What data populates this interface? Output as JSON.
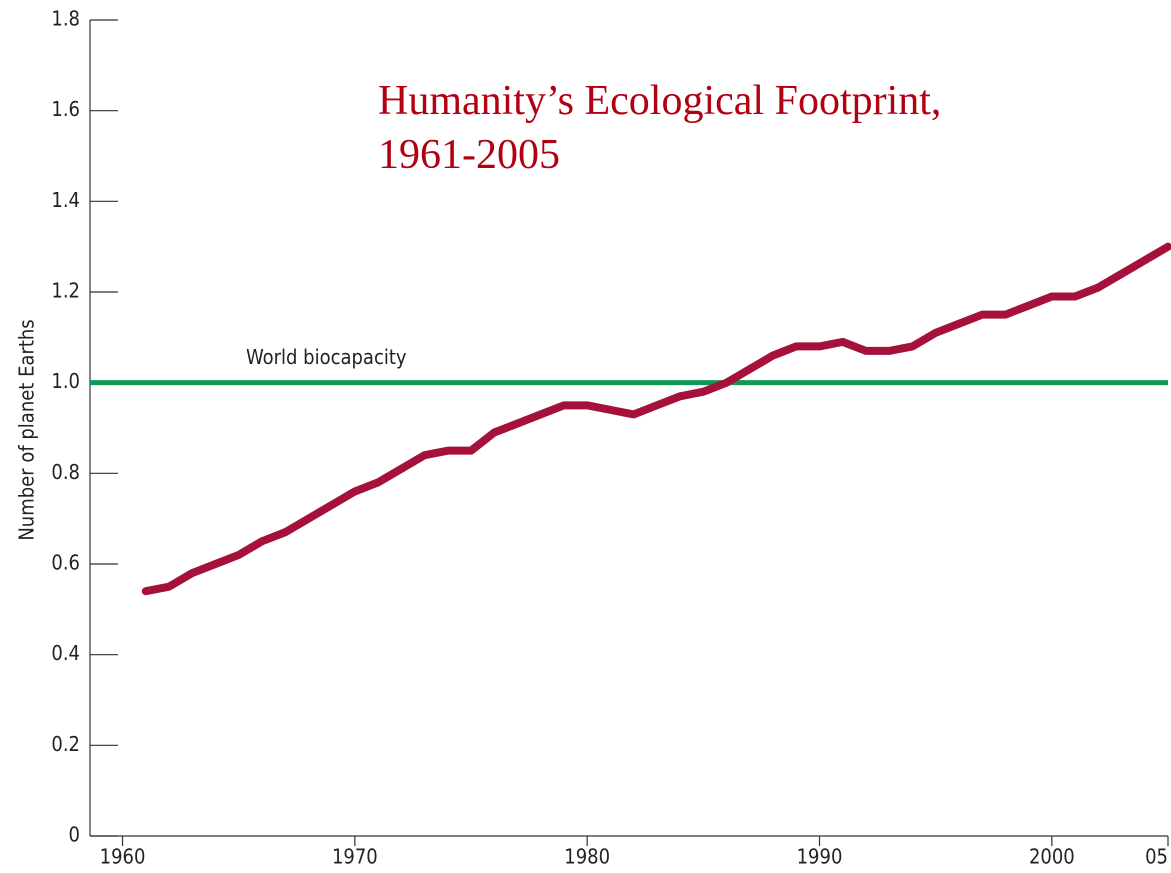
{
  "chart_data": {
    "type": "line",
    "title": "Humanity’s Ecological Footprint,  1961-2005",
    "y_label": "Number of planet Earths",
    "x": [
      1961,
      1962,
      1963,
      1964,
      1965,
      1966,
      1967,
      1968,
      1969,
      1970,
      1971,
      1972,
      1973,
      1974,
      1975,
      1976,
      1977,
      1978,
      1979,
      1980,
      1981,
      1982,
      1983,
      1984,
      1985,
      1986,
      1987,
      1988,
      1989,
      1990,
      1991,
      1992,
      1993,
      1994,
      1995,
      1996,
      1997,
      1998,
      1999,
      2000,
      2001,
      2002,
      2003,
      2004,
      2005
    ],
    "series": [
      {
        "color": "#a6113c",
        "values": [
          0.54,
          0.55,
          0.58,
          0.6,
          0.62,
          0.65,
          0.67,
          0.7,
          0.73,
          0.76,
          0.78,
          0.81,
          0.84,
          0.85,
          0.85,
          0.89,
          0.91,
          0.93,
          0.95,
          0.95,
          0.94,
          0.93,
          0.95,
          0.97,
          0.98,
          1.0,
          1.03,
          1.06,
          1.08,
          1.08,
          1.09,
          1.07,
          1.07,
          1.08,
          1.11,
          1.13,
          1.15,
          1.15,
          1.17,
          1.19,
          1.19,
          1.21,
          1.24,
          1.27,
          1.3
        ]
      }
    ],
    "reference_line": {
      "value": 1,
      "label": "World biocapacity",
      "color": "#0e9a55"
    },
    "xlim": [
      1958.6,
      2005
    ],
    "xticks": [
      1960,
      1970,
      1980,
      1990,
      2000,
      {
        "value": 2005,
        "label": "05"
      }
    ],
    "ylim": [
      0,
      1.8
    ],
    "yticks": [
      0,
      0.2,
      0.4,
      0.6,
      0.8,
      {
        "value": 1,
        "label": "1.0"
      },
      1.2,
      1.4,
      1.6,
      1.8
    ],
    "title_color": "#b00012"
  }
}
